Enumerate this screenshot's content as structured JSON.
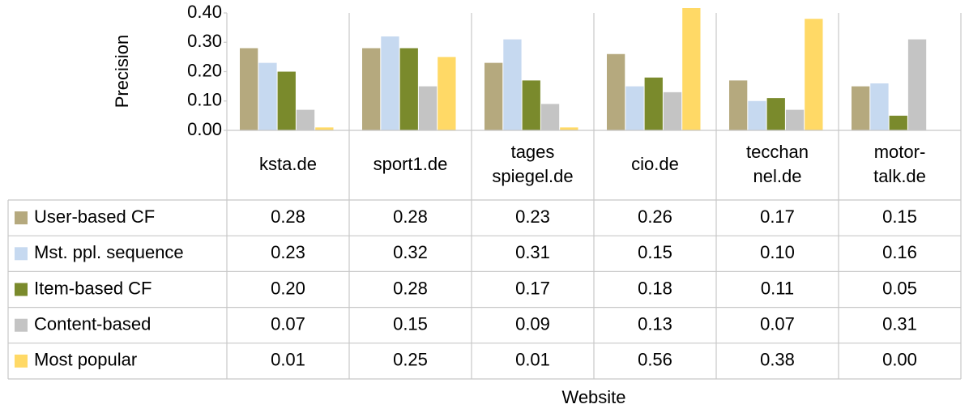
{
  "chart_data": {
    "type": "bar",
    "y_label": "Precision",
    "x_label": "Website",
    "categories": [
      "ksta.de",
      "sport1.de",
      "tages\nspiegel.de",
      "cio.de",
      "tecchan\nnel.de",
      "motor-\ntalk.de"
    ],
    "ylim": [
      0,
      0.4
    ],
    "yticks": [
      {
        "value": 0,
        "label": "0.00"
      },
      {
        "value": 0.1,
        "label": "0.10"
      },
      {
        "value": 0.2,
        "label": "0.20"
      },
      {
        "value": 0.3,
        "label": "0.30"
      },
      {
        "value": 0.4,
        "label": "0.40"
      }
    ],
    "series": [
      {
        "name": "User-based CF",
        "color": "#b5a97e",
        "values": [
          0.28,
          0.28,
          0.23,
          0.26,
          0.17,
          0.15
        ],
        "value_labels": [
          "0.28",
          "0.28",
          "0.23",
          "0.26",
          "0.17",
          "0.15"
        ]
      },
      {
        "name": "Mst. ppl. sequence",
        "color": "#c6d9f0",
        "values": [
          0.23,
          0.32,
          0.31,
          0.15,
          0.1,
          0.16
        ],
        "value_labels": [
          "0.23",
          "0.32",
          "0.31",
          "0.15",
          "0.10",
          "0.16"
        ]
      },
      {
        "name": "Item-based CF",
        "color": "#7a8a2c",
        "values": [
          0.2,
          0.28,
          0.17,
          0.18,
          0.11,
          0.05
        ],
        "value_labels": [
          "0.20",
          "0.28",
          "0.17",
          "0.18",
          "0.11",
          "0.05"
        ]
      },
      {
        "name": "Content-based",
        "color": "#c4c4c4",
        "values": [
          0.07,
          0.15,
          0.09,
          0.13,
          0.07,
          0.31
        ],
        "value_labels": [
          "0.07",
          "0.15",
          "0.09",
          "0.13",
          "0.07",
          "0.31"
        ]
      },
      {
        "name": "Most popular",
        "color": "#ffd966",
        "values": [
          0.01,
          0.25,
          0.01,
          0.56,
          0.38,
          0.0
        ],
        "value_labels": [
          "0.01",
          "0.25",
          "0.01",
          "0.56",
          "0.38",
          "0.00"
        ]
      }
    ],
    "data_table": true
  }
}
